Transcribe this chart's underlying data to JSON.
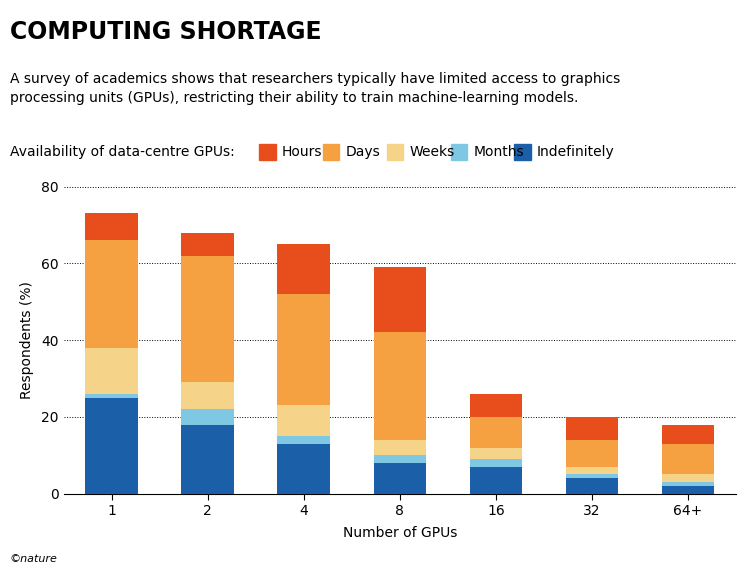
{
  "title": "COMPUTING SHORTAGE",
  "subtitle": "A survey of academics shows that researchers typically have limited access to graphics\nprocessing units (GPUs), restricting their ability to train machine-learning models.",
  "legend_label": "Availability of data-centre GPUs:",
  "categories": [
    "1",
    "2",
    "4",
    "8",
    "16",
    "32",
    "64+"
  ],
  "xlabel": "Number of GPUs",
  "ylabel": "Respondents (%)",
  "ylim": [
    0,
    80
  ],
  "yticks": [
    0,
    20,
    40,
    60,
    80
  ],
  "segments": {
    "Indefinitely": [
      25,
      18,
      13,
      8,
      7,
      4,
      2
    ],
    "Months": [
      1,
      4,
      2,
      2,
      2,
      1,
      1
    ],
    "Weeks": [
      12,
      7,
      8,
      4,
      3,
      2,
      2
    ],
    "Days": [
      28,
      33,
      29,
      28,
      8,
      7,
      8
    ],
    "Hours": [
      7,
      6,
      13,
      17,
      6,
      6,
      5
    ]
  },
  "colors": {
    "Indefinitely": "#1a5fa8",
    "Months": "#7ec8e3",
    "Weeks": "#f5d48a",
    "Days": "#f5a142",
    "Hours": "#e84e1b"
  },
  "segment_order": [
    "Indefinitely",
    "Months",
    "Weeks",
    "Days",
    "Hours"
  ],
  "legend_order": [
    "Hours",
    "Days",
    "Weeks",
    "Months",
    "Indefinitely"
  ],
  "bar_width": 0.55,
  "background_color": "#ffffff",
  "nature_label": "©nature",
  "title_fontsize": 17,
  "subtitle_fontsize": 10,
  "axis_fontsize": 10,
  "tick_fontsize": 10,
  "legend_fontsize": 10
}
